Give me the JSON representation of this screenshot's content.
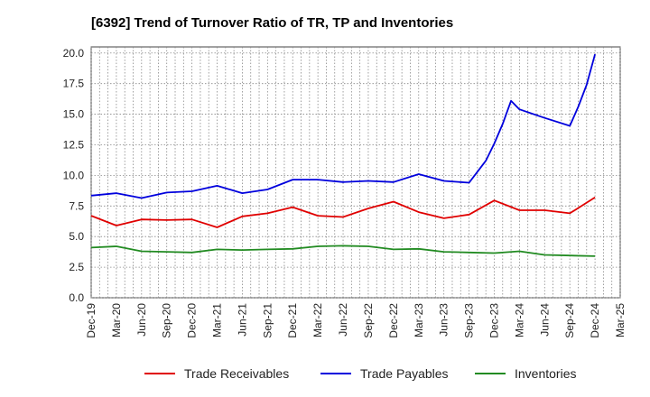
{
  "chart_data": {
    "type": "line",
    "title": "[6392]  Trend of Turnover Ratio of TR, TP and Inventories",
    "xlabel": "",
    "ylabel": "",
    "ylim": [
      0,
      20.5
    ],
    "yticks": [
      "0.0",
      "2.5",
      "5.0",
      "7.5",
      "10.0",
      "12.5",
      "15.0",
      "17.5",
      "20.0"
    ],
    "ytick_values": [
      0,
      2.5,
      5,
      7.5,
      10,
      12.5,
      15,
      17.5,
      20
    ],
    "x": [
      "Dec-19",
      "Jan-20",
      "Feb-20",
      "Mar-20",
      "Apr-20",
      "May-20",
      "Jun-20",
      "Jul-20",
      "Aug-20",
      "Sep-20",
      "Oct-20",
      "Nov-20",
      "Dec-20",
      "Jan-21",
      "Feb-21",
      "Mar-21",
      "Apr-21",
      "May-21",
      "Jun-21",
      "Jul-21",
      "Aug-21",
      "Sep-21",
      "Oct-21",
      "Nov-21",
      "Dec-21",
      "Jan-22",
      "Feb-22",
      "Mar-22",
      "Apr-22",
      "May-22",
      "Jun-22",
      "Jul-22",
      "Aug-22",
      "Sep-22",
      "Oct-22",
      "Nov-22",
      "Dec-22",
      "Jan-23",
      "Feb-23",
      "Mar-23",
      "Apr-23",
      "May-23",
      "Jun-23",
      "Jul-23",
      "Aug-23",
      "Sep-23",
      "Oct-23",
      "Nov-23",
      "Dec-23",
      "Jan-24",
      "Feb-24",
      "Mar-24",
      "Apr-24",
      "May-24",
      "Jun-24",
      "Jul-24",
      "Aug-24",
      "Sep-24",
      "Oct-24",
      "Nov-24",
      "Dec-24",
      "Jan-25",
      "Feb-25",
      "Mar-25"
    ],
    "tick_labels": [
      "Dec-19",
      "Mar-20",
      "Jun-20",
      "Sep-20",
      "Dec-20",
      "Mar-21",
      "Jun-21",
      "Sep-21",
      "Dec-21",
      "Mar-22",
      "Jun-22",
      "Sep-22",
      "Dec-22",
      "Mar-23",
      "Jun-23",
      "Sep-23",
      "Dec-23",
      "Mar-24",
      "Jun-24",
      "Sep-24",
      "Dec-24",
      "Mar-25"
    ],
    "grid": true,
    "legend_position": "bottom",
    "series": [
      {
        "name": "Trade Receivables",
        "color": "#e00000",
        "points": [
          [
            "Dec-19",
            6.7
          ],
          [
            "Mar-20",
            5.9
          ],
          [
            "Jun-20",
            6.4
          ],
          [
            "Sep-20",
            6.35
          ],
          [
            "Dec-20",
            6.4
          ],
          [
            "Mar-21",
            5.75
          ],
          [
            "Jun-21",
            6.65
          ],
          [
            "Sep-21",
            6.9
          ],
          [
            "Dec-21",
            7.4
          ],
          [
            "Mar-22",
            6.7
          ],
          [
            "Jun-22",
            6.6
          ],
          [
            "Sep-22",
            7.3
          ],
          [
            "Dec-22",
            7.85
          ],
          [
            "Mar-23",
            7.0
          ],
          [
            "Jun-23",
            6.5
          ],
          [
            "Sep-23",
            6.8
          ],
          [
            "Dec-23",
            7.95
          ],
          [
            "Mar-24",
            7.15
          ],
          [
            "Jun-24",
            7.15
          ],
          [
            "Sep-24",
            6.9
          ],
          [
            "Dec-24",
            8.2
          ]
        ]
      },
      {
        "name": "Trade Payables",
        "color": "#0000dd",
        "points": [
          [
            "Dec-19",
            8.35
          ],
          [
            "Mar-20",
            8.55
          ],
          [
            "Jun-20",
            8.15
          ],
          [
            "Sep-20",
            8.6
          ],
          [
            "Dec-20",
            8.7
          ],
          [
            "Mar-21",
            9.15
          ],
          [
            "Jun-21",
            8.55
          ],
          [
            "Sep-21",
            8.85
          ],
          [
            "Dec-21",
            9.65
          ],
          [
            "Mar-22",
            9.65
          ],
          [
            "Jun-22",
            9.45
          ],
          [
            "Sep-22",
            9.55
          ],
          [
            "Dec-22",
            9.45
          ],
          [
            "Mar-23",
            10.1
          ],
          [
            "Jun-23",
            9.55
          ],
          [
            "Sep-23",
            9.4
          ],
          [
            "Oct-23",
            10.3
          ],
          [
            "Nov-23",
            11.2
          ],
          [
            "Dec-23",
            12.6
          ],
          [
            "Jan-24",
            14.2
          ],
          [
            "Feb-24",
            16.1
          ],
          [
            "Mar-24",
            15.4
          ],
          [
            "Jun-24",
            14.7
          ],
          [
            "Sep-24",
            14.05
          ],
          [
            "Oct-24",
            15.6
          ],
          [
            "Nov-24",
            17.4
          ],
          [
            "Dec-24",
            19.9
          ]
        ]
      },
      {
        "name": "Inventories",
        "color": "#228b22",
        "points": [
          [
            "Dec-19",
            4.1
          ],
          [
            "Mar-20",
            4.2
          ],
          [
            "Jun-20",
            3.8
          ],
          [
            "Sep-20",
            3.75
          ],
          [
            "Dec-20",
            3.7
          ],
          [
            "Mar-21",
            3.95
          ],
          [
            "Jun-21",
            3.9
          ],
          [
            "Sep-21",
            3.95
          ],
          [
            "Dec-21",
            4.0
          ],
          [
            "Mar-22",
            4.2
          ],
          [
            "Jun-22",
            4.25
          ],
          [
            "Sep-22",
            4.2
          ],
          [
            "Dec-22",
            3.95
          ],
          [
            "Mar-23",
            4.0
          ],
          [
            "Jun-23",
            3.75
          ],
          [
            "Sep-23",
            3.7
          ],
          [
            "Dec-23",
            3.65
          ],
          [
            "Mar-24",
            3.8
          ],
          [
            "Jun-24",
            3.5
          ],
          [
            "Sep-24",
            3.45
          ],
          [
            "Dec-24",
            3.4
          ]
        ]
      }
    ]
  }
}
